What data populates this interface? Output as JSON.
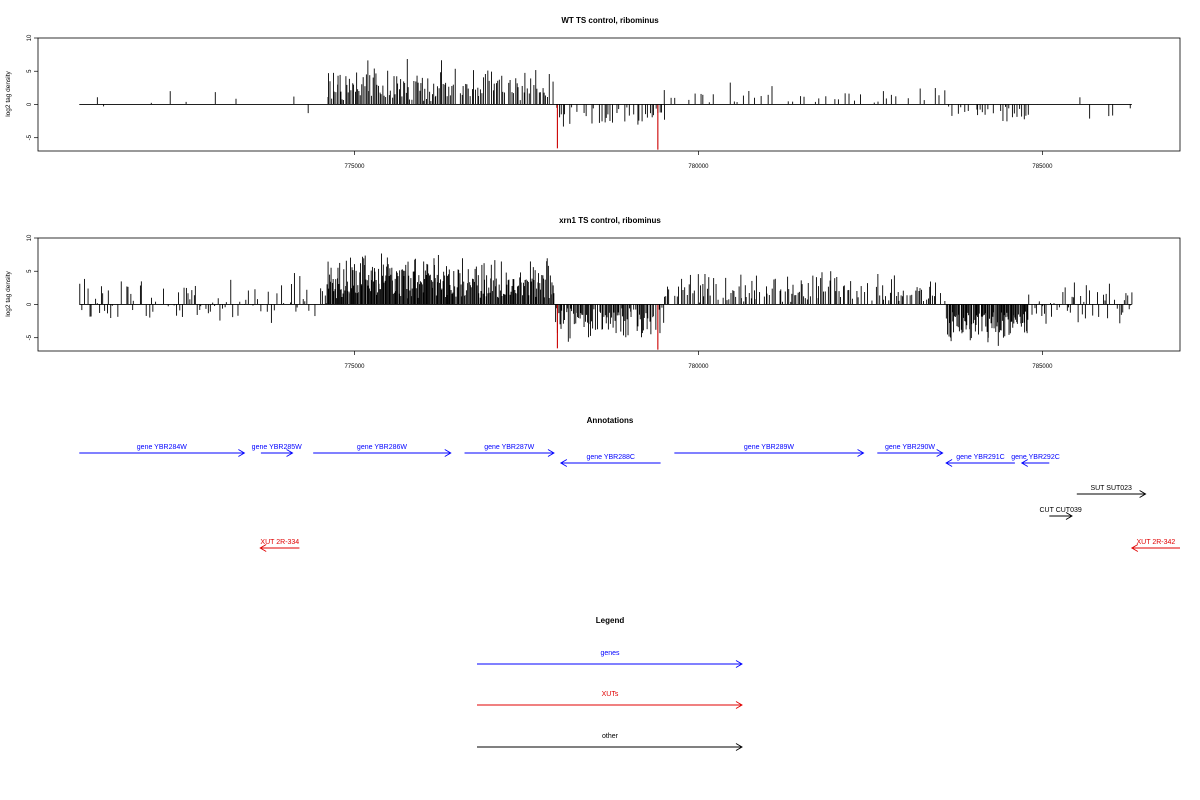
{
  "chart_data": [
    {
      "type": "bar",
      "title": "WT TS control, ribominus",
      "ylabel": "log2 tag density",
      "xlabel": "",
      "xlim": [
        770400,
        787000
      ],
      "ylim": [
        -7,
        10
      ],
      "yticks": [
        -5,
        0,
        5,
        10
      ],
      "xticks": [
        775000,
        780000,
        785000
      ],
      "grid": false,
      "highlight_color": "#cc0000",
      "bar_color": "#000000",
      "segments": [
        {
          "from": 771000,
          "to": 774600,
          "step": 160,
          "min": -1.6,
          "max": 2.8,
          "density": 0.35
        },
        {
          "from": 774600,
          "to": 776400,
          "step": 20,
          "min": 1.0,
          "max": 7.0,
          "density": 0.95
        },
        {
          "from": 776400,
          "to": 777900,
          "step": 25,
          "min": 1.0,
          "max": 6.2,
          "density": 0.9
        },
        {
          "from": 777900,
          "to": 779500,
          "step": 30,
          "min": -4.2,
          "max": -0.5,
          "density": 0.7
        },
        {
          "from": 779500,
          "to": 783600,
          "step": 70,
          "min": 0.4,
          "max": 3.5,
          "density": 0.7
        },
        {
          "from": 783600,
          "to": 784800,
          "step": 35,
          "min": -3.2,
          "max": -0.6,
          "density": 0.75
        },
        {
          "from": 784800,
          "to": 786300,
          "step": 110,
          "min": -3.0,
          "max": 2.2,
          "density": 0.5
        }
      ],
      "highlights": [
        {
          "x": 777950,
          "y": -6.6
        },
        {
          "x": 779410,
          "y": -6.8
        }
      ]
    },
    {
      "type": "bar",
      "title": "xrn1 TS control, ribominus",
      "ylabel": "log2 tag density",
      "xlabel": "",
      "xlim": [
        770400,
        787000
      ],
      "ylim": [
        -7,
        10
      ],
      "yticks": [
        -5,
        0,
        5,
        10
      ],
      "xticks": [
        775000,
        780000,
        785000
      ],
      "grid": false,
      "highlight_color": "#cc0000",
      "bar_color": "#000000",
      "segments": [
        {
          "from": 771000,
          "to": 774600,
          "step": 28,
          "min": -3.0,
          "max": 5.0,
          "density": 0.7
        },
        {
          "from": 774600,
          "to": 776400,
          "step": 12,
          "min": 1.5,
          "max": 9.2,
          "density": 1.0
        },
        {
          "from": 776400,
          "to": 777900,
          "step": 14,
          "min": 1.5,
          "max": 7.8,
          "density": 1.0
        },
        {
          "from": 777900,
          "to": 779500,
          "step": 16,
          "min": -6.0,
          "max": -1.0,
          "density": 0.9
        },
        {
          "from": 779500,
          "to": 783600,
          "step": 22,
          "min": 0.5,
          "max": 5.4,
          "density": 0.7
        },
        {
          "from": 783600,
          "to": 784800,
          "step": 12,
          "min": -6.5,
          "max": -1.5,
          "density": 0.95
        },
        {
          "from": 784800,
          "to": 786300,
          "step": 22,
          "min": -3.5,
          "max": 4.0,
          "density": 0.75
        }
      ],
      "highlights": [
        {
          "x": 777950,
          "y": -6.6
        },
        {
          "x": 779410,
          "y": -6.8
        }
      ]
    }
  ],
  "annotations": {
    "title": "Annotations",
    "features": [
      {
        "label": "gene YBR284W",
        "start": 771000,
        "end": 773400,
        "strand": "+",
        "row": 0,
        "kind": "gene"
      },
      {
        "label": "gene YBR285W",
        "start": 773640,
        "end": 774100,
        "strand": "+",
        "row": 0,
        "kind": "gene"
      },
      {
        "label": "gene YBR286W",
        "start": 774400,
        "end": 776400,
        "strand": "+",
        "row": 0,
        "kind": "gene"
      },
      {
        "label": "gene YBR287W",
        "start": 776600,
        "end": 777900,
        "strand": "+",
        "row": 0,
        "kind": "gene"
      },
      {
        "label": "gene YBR288C",
        "start": 778000,
        "end": 779450,
        "strand": "-",
        "row": 1,
        "kind": "gene"
      },
      {
        "label": "gene YBR289W",
        "start": 779650,
        "end": 782400,
        "strand": "+",
        "row": 0,
        "kind": "gene"
      },
      {
        "label": "gene YBR290W",
        "start": 782600,
        "end": 783550,
        "strand": "+",
        "row": 0,
        "kind": "gene"
      },
      {
        "label": "gene YBR291C",
        "start": 783600,
        "end": 784600,
        "strand": "-",
        "row": 1,
        "kind": "gene"
      },
      {
        "label": "gene YBR292C",
        "start": 784700,
        "end": 785100,
        "strand": "-",
        "row": 1,
        "kind": "gene"
      },
      {
        "label": "SUT SUT023",
        "start": 785500,
        "end": 786500,
        "strand": "+",
        "row": 2,
        "kind": "other"
      },
      {
        "label": "CUT CUT039",
        "start": 785100,
        "end": 785430,
        "strand": "+",
        "row": 3,
        "kind": "other"
      },
      {
        "label": "XUT 2R-334",
        "start": 773630,
        "end": 774200,
        "strand": "-",
        "row": 4,
        "kind": "xut"
      },
      {
        "label": "XUT 2R-342",
        "start": 786300,
        "end": 787000,
        "strand": "-",
        "row": 4,
        "kind": "xut"
      }
    ]
  },
  "legend": {
    "title": "Legend",
    "items": [
      {
        "label": "genes",
        "kind": "gene"
      },
      {
        "label": "XUTs",
        "kind": "xut"
      },
      {
        "label": "other",
        "kind": "other"
      }
    ]
  },
  "colors": {
    "gene": "#0000ff",
    "xut": "#e00000",
    "other": "#000000"
  }
}
